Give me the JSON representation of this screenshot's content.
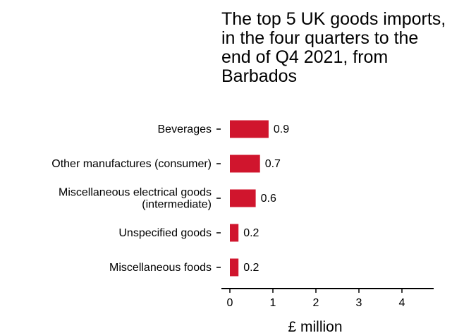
{
  "chart_data": {
    "type": "bar",
    "orientation": "horizontal",
    "title": "The top 5 UK goods imports, in the four quarters to the end of Q4 2021, from Barbados",
    "xlabel": "£ million",
    "ylabel": "",
    "categories": [
      "Beverages",
      "Other manufactures (consumer)",
      "Miscellaneous electrical goods (intermediate)",
      "Unspecified goods",
      "Miscellaneous foods"
    ],
    "category_lines": [
      [
        "Beverages"
      ],
      [
        "Other manufactures (consumer)"
      ],
      [
        "Miscellaneous electrical goods",
        "(intermediate)"
      ],
      [
        "Unspecified goods"
      ],
      [
        "Miscellaneous foods"
      ]
    ],
    "values": [
      0.9,
      0.7,
      0.6,
      0.2,
      0.2
    ],
    "value_labels": [
      "0.9",
      "0.7",
      "0.6",
      "0.2",
      "0.2"
    ],
    "xlim": [
      0,
      4.7
    ],
    "xticks": [
      0,
      1,
      2,
      3,
      4
    ],
    "grid": false,
    "bar_color": "#d0152d"
  }
}
